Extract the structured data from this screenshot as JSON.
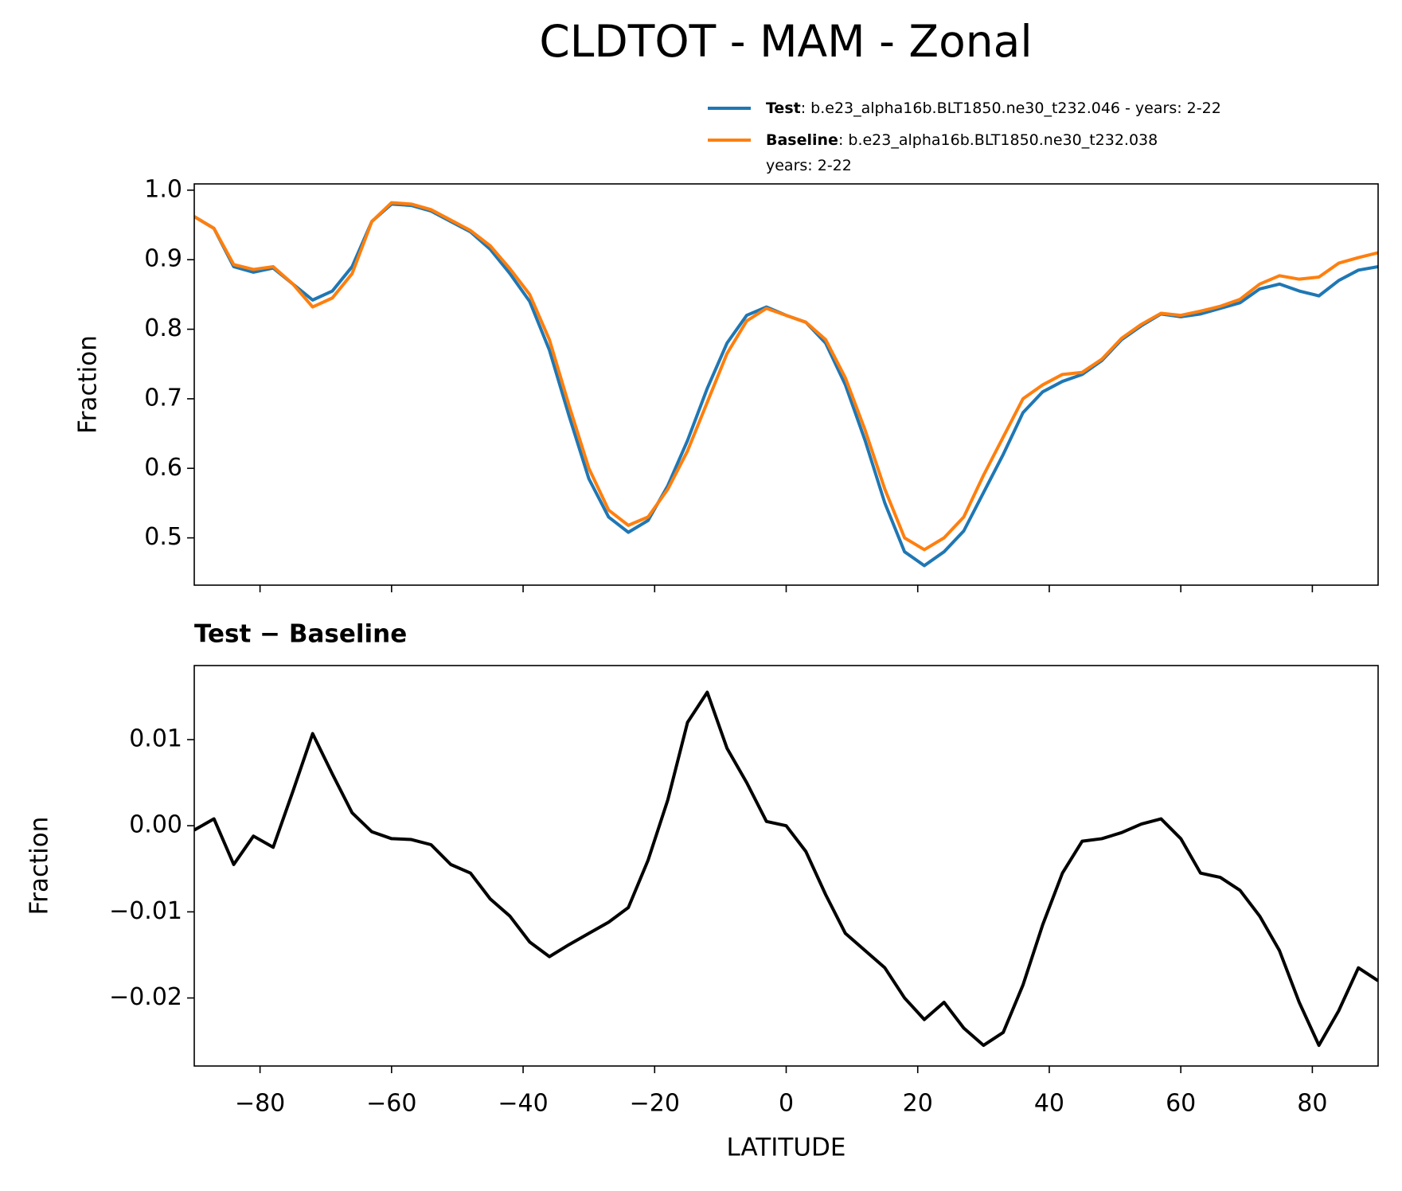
{
  "title": "CLDTOT - MAM - Zonal",
  "chart_data": [
    {
      "type": "line",
      "x": [
        -90,
        -87,
        -84,
        -81,
        -78,
        -75,
        -72,
        -69,
        -66,
        -63,
        -60,
        -57,
        -54,
        -51,
        -48,
        -45,
        -42,
        -39,
        -36,
        -33,
        -30,
        -27,
        -24,
        -21,
        -18,
        -15,
        -12,
        -9,
        -6,
        -3,
        0,
        3,
        6,
        9,
        12,
        15,
        18,
        21,
        24,
        27,
        30,
        33,
        36,
        39,
        42,
        45,
        48,
        51,
        54,
        57,
        60,
        63,
        66,
        69,
        72,
        75,
        78,
        81,
        84,
        87,
        90
      ],
      "series": [
        {
          "name": "Test",
          "description": [
            ": b.e23_alpha16b.BLT1850.ne30_t232.046 - years: 2-22"
          ],
          "color": "#1f77b4",
          "values": [
            0.962,
            0.945,
            0.89,
            0.882,
            0.888,
            0.865,
            0.842,
            0.855,
            0.89,
            0.955,
            0.98,
            0.978,
            0.97,
            0.955,
            0.94,
            0.915,
            0.88,
            0.84,
            0.77,
            0.675,
            0.585,
            0.53,
            0.508,
            0.525,
            0.575,
            0.64,
            0.715,
            0.78,
            0.82,
            0.832,
            0.82,
            0.81,
            0.78,
            0.72,
            0.64,
            0.55,
            0.48,
            0.46,
            0.48,
            0.51,
            0.565,
            0.62,
            0.68,
            0.71,
            0.725,
            0.735,
            0.755,
            0.785,
            0.805,
            0.822,
            0.818,
            0.822,
            0.83,
            0.838,
            0.858,
            0.865,
            0.855,
            0.848,
            0.87,
            0.885,
            0.89
          ]
        },
        {
          "name": "Baseline",
          "description": [
            ": b.e23_alpha16b.BLT1850.ne30_t232.038",
            "years: 2-22"
          ],
          "color": "#ff7f0e",
          "values": [
            0.962,
            0.945,
            0.893,
            0.886,
            0.89,
            0.865,
            0.832,
            0.845,
            0.88,
            0.955,
            0.982,
            0.98,
            0.972,
            0.957,
            0.942,
            0.92,
            0.887,
            0.85,
            0.785,
            0.69,
            0.6,
            0.54,
            0.518,
            0.53,
            0.57,
            0.625,
            0.695,
            0.765,
            0.812,
            0.83,
            0.82,
            0.81,
            0.785,
            0.73,
            0.655,
            0.57,
            0.5,
            0.483,
            0.5,
            0.53,
            0.59,
            0.645,
            0.7,
            0.72,
            0.735,
            0.738,
            0.757,
            0.787,
            0.807,
            0.823,
            0.82,
            0.826,
            0.833,
            0.843,
            0.865,
            0.877,
            0.872,
            0.875,
            0.895,
            0.903,
            0.91
          ]
        }
      ],
      "xlim": [
        -90,
        90
      ],
      "xticks": [
        -80,
        -60,
        -40,
        -20,
        0,
        20,
        40,
        60,
        80
      ],
      "show_xtick_labels": false,
      "ylim": [
        0.432,
        1.009
      ],
      "yticks": [
        0.5,
        0.6,
        0.7,
        0.8,
        0.9,
        {
          "value": 1,
          "label": "1.0"
        }
      ],
      "y_label": "Fraction"
    },
    {
      "type": "line",
      "title": "Test − Baseline",
      "x": [
        -90,
        -87,
        -84,
        -81,
        -78,
        -75,
        -72,
        -69,
        -66,
        -63,
        -60,
        -57,
        -54,
        -51,
        -48,
        -45,
        -42,
        -39,
        -36,
        -33,
        -30,
        -27,
        -24,
        -21,
        -18,
        -15,
        -12,
        -9,
        -6,
        -3,
        0,
        3,
        6,
        9,
        12,
        15,
        18,
        21,
        24,
        27,
        30,
        33,
        36,
        39,
        42,
        45,
        48,
        51,
        54,
        57,
        60,
        63,
        66,
        69,
        72,
        75,
        78,
        81,
        84,
        87,
        90
      ],
      "color": "#000000",
      "values": [
        -0.0005,
        0.0008,
        -0.0045,
        -0.0012,
        -0.0025,
        0.004,
        0.0107,
        0.006,
        0.0015,
        -0.0007,
        -0.0015,
        -0.0016,
        -0.0022,
        -0.0045,
        -0.0055,
        -0.0085,
        -0.0105,
        -0.0135,
        -0.0152,
        -0.0138,
        -0.0125,
        -0.0112,
        -0.0095,
        -0.004,
        0.003,
        0.012,
        0.0155,
        0.009,
        0.005,
        0.0005,
        0,
        -0.003,
        -0.008,
        -0.0125,
        -0.0145,
        -0.0165,
        -0.02,
        -0.0225,
        -0.0205,
        -0.0235,
        -0.0255,
        -0.024,
        -0.0185,
        -0.0115,
        -0.0055,
        -0.0018,
        -0.0015,
        -0.0008,
        0.0002,
        0.0008,
        -0.0015,
        -0.0055,
        -0.006,
        -0.0075,
        -0.0105,
        -0.0145,
        -0.0205,
        -0.0255,
        -0.0215,
        -0.0165,
        -0.018
      ],
      "xlim": [
        -90,
        90
      ],
      "xticks": [
        {
          "value": -80,
          "label": "−80"
        },
        {
          "value": -60,
          "label": "−60"
        },
        {
          "value": -40,
          "label": "−40"
        },
        {
          "value": -20,
          "label": "−20"
        },
        0,
        20,
        40,
        60,
        80
      ],
      "show_xtick_labels": true,
      "ylim": [
        -0.0279,
        0.0186
      ],
      "yticks": [
        {
          "value": -0.02,
          "label": "−0.02"
        },
        {
          "value": -0.01,
          "label": "−0.01"
        },
        {
          "value": 0,
          "label": "0.00"
        },
        0.01
      ],
      "y_label": "Fraction",
      "x_label": "LATITUDE"
    }
  ]
}
